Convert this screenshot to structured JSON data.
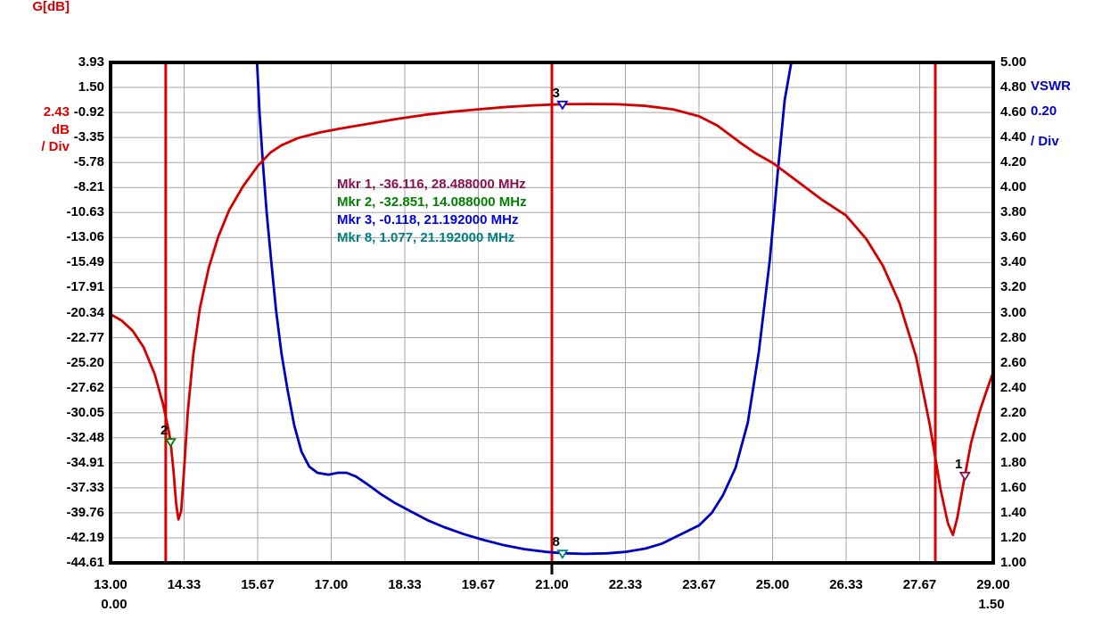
{
  "left_axis": {
    "name": "G[dB]",
    "per_div": "2.43",
    "per_div_unit": "dB",
    "per_div_suffix": "/ Div",
    "color": "#dd0000",
    "range": [
      3.93,
      -44.61
    ],
    "ticks": [
      "3.93",
      "1.50",
      "-0.92",
      "-3.35",
      "-5.78",
      "-8.21",
      "-10.63",
      "-13.06",
      "-15.49",
      "-17.91",
      "-20.34",
      "-22.77",
      "-25.20",
      "-27.62",
      "-30.05",
      "-32.48",
      "-34.91",
      "-37.33",
      "-39.76",
      "-42.19",
      "-44.61"
    ]
  },
  "right_axis": {
    "name": "VSWR",
    "per_div": "0.20",
    "per_div_suffix": "/ Div",
    "color": "#0000cc",
    "range": [
      5.0,
      1.0
    ],
    "ticks": [
      "5.00",
      "4.80",
      "4.60",
      "4.40",
      "4.20",
      "4.00",
      "3.80",
      "3.60",
      "3.40",
      "3.20",
      "3.00",
      "2.80",
      "2.60",
      "2.40",
      "2.20",
      "2.00",
      "1.80",
      "1.60",
      "1.40",
      "1.20",
      "1.00"
    ]
  },
  "x_axis": {
    "range_mhz": [
      13.0,
      29.0
    ],
    "ticks": [
      "13.00",
      "14.33",
      "15.67",
      "17.00",
      "18.33",
      "19.67",
      "21.00",
      "22.33",
      "23.67",
      "25.00",
      "26.33",
      "27.67",
      "29.00"
    ],
    "sub_label_left": "0.00",
    "sub_label_right": "1.50"
  },
  "marker_readout": {
    "lines": [
      {
        "text": "Mkr 1, -36.116, 28.488000 MHz",
        "color": "#8b1050"
      },
      {
        "text": "Mkr 2, -32.851, 14.088000 MHz",
        "color": "#008000"
      },
      {
        "text": "Mkr 3, -0.118, 21.192000 MHz",
        "color": "#0000e6"
      },
      {
        "text": "Mkr 8, 1.077, 21.192000 MHz",
        "color": "#008080"
      }
    ]
  },
  "chart_data": {
    "type": "line",
    "title": "",
    "x_range": [
      13.0,
      29.0
    ],
    "left_axis_range": [
      -44.61,
      3.93
    ],
    "right_axis_range": [
      1.0,
      5.0
    ],
    "grid": true,
    "frame_color": "#000000",
    "grid_color": "#a6a6a6",
    "vertical_reference_lines": {
      "color": "#dd0000",
      "frequencies_mhz": [
        14.0,
        21.0,
        27.95
      ]
    },
    "bottom_tick_mhz": 21.0,
    "series": [
      {
        "name": "Gain",
        "unit": "dB",
        "axis": "left",
        "color": "#d40000",
        "points": [
          [
            13.0,
            -20.5
          ],
          [
            13.2,
            -21.1
          ],
          [
            13.4,
            -22.1
          ],
          [
            13.6,
            -23.7
          ],
          [
            13.8,
            -26.3
          ],
          [
            13.95,
            -29.2
          ],
          [
            14.05,
            -31.7
          ],
          [
            14.088,
            -32.851
          ],
          [
            14.14,
            -35.6
          ],
          [
            14.19,
            -38.9
          ],
          [
            14.23,
            -40.4
          ],
          [
            14.28,
            -39.6
          ],
          [
            14.33,
            -35.8
          ],
          [
            14.4,
            -30.0
          ],
          [
            14.5,
            -24.4
          ],
          [
            14.62,
            -19.9
          ],
          [
            14.78,
            -16.0
          ],
          [
            14.95,
            -13.0
          ],
          [
            15.15,
            -10.4
          ],
          [
            15.4,
            -8.1
          ],
          [
            15.67,
            -6.1
          ],
          [
            15.9,
            -4.8
          ],
          [
            16.1,
            -4.1
          ],
          [
            16.4,
            -3.4
          ],
          [
            16.8,
            -2.85
          ],
          [
            17.2,
            -2.45
          ],
          [
            17.7,
            -2.0
          ],
          [
            18.2,
            -1.55
          ],
          [
            18.7,
            -1.15
          ],
          [
            19.2,
            -0.85
          ],
          [
            19.7,
            -0.6
          ],
          [
            20.2,
            -0.38
          ],
          [
            20.7,
            -0.22
          ],
          [
            21.192,
            -0.118
          ],
          [
            21.7,
            -0.1
          ],
          [
            22.2,
            -0.13
          ],
          [
            22.7,
            -0.28
          ],
          [
            23.2,
            -0.62
          ],
          [
            23.67,
            -1.3
          ],
          [
            24.0,
            -2.2
          ],
          [
            24.4,
            -3.8
          ],
          [
            24.7,
            -4.9
          ],
          [
            25.0,
            -5.8
          ],
          [
            25.4,
            -7.4
          ],
          [
            25.9,
            -9.4
          ],
          [
            26.33,
            -10.9
          ],
          [
            26.7,
            -13.2
          ],
          [
            27.0,
            -15.8
          ],
          [
            27.3,
            -19.4
          ],
          [
            27.6,
            -24.6
          ],
          [
            27.85,
            -31.2
          ],
          [
            28.05,
            -37.6
          ],
          [
            28.18,
            -40.8
          ],
          [
            28.27,
            -41.9
          ],
          [
            28.35,
            -40.2
          ],
          [
            28.42,
            -38.1
          ],
          [
            28.488,
            -36.116
          ],
          [
            28.6,
            -32.9
          ],
          [
            28.75,
            -30.0
          ],
          [
            28.88,
            -27.9
          ],
          [
            29.0,
            -26.1
          ]
        ]
      },
      {
        "name": "VSWR",
        "unit": "",
        "axis": "right",
        "color": "#0000c0",
        "points": [
          [
            15.655,
            5.0
          ],
          [
            15.7,
            4.6
          ],
          [
            15.76,
            4.2
          ],
          [
            15.83,
            3.8
          ],
          [
            15.91,
            3.42
          ],
          [
            16.0,
            3.02
          ],
          [
            16.1,
            2.67
          ],
          [
            16.21,
            2.38
          ],
          [
            16.33,
            2.1
          ],
          [
            16.46,
            1.89
          ],
          [
            16.6,
            1.77
          ],
          [
            16.75,
            1.72
          ],
          [
            16.95,
            1.705
          ],
          [
            17.12,
            1.72
          ],
          [
            17.28,
            1.72
          ],
          [
            17.45,
            1.69
          ],
          [
            17.65,
            1.63
          ],
          [
            17.9,
            1.55
          ],
          [
            18.15,
            1.48
          ],
          [
            18.45,
            1.41
          ],
          [
            18.75,
            1.34
          ],
          [
            19.05,
            1.285
          ],
          [
            19.4,
            1.23
          ],
          [
            19.75,
            1.185
          ],
          [
            20.1,
            1.145
          ],
          [
            20.5,
            1.11
          ],
          [
            20.9,
            1.088
          ],
          [
            21.192,
            1.077
          ],
          [
            21.6,
            1.072
          ],
          [
            22.0,
            1.076
          ],
          [
            22.33,
            1.088
          ],
          [
            22.7,
            1.115
          ],
          [
            23.0,
            1.155
          ],
          [
            23.3,
            1.22
          ],
          [
            23.67,
            1.3
          ],
          [
            23.9,
            1.4
          ],
          [
            24.1,
            1.54
          ],
          [
            24.33,
            1.76
          ],
          [
            24.55,
            2.12
          ],
          [
            24.75,
            2.68
          ],
          [
            24.95,
            3.42
          ],
          [
            25.1,
            4.15
          ],
          [
            25.22,
            4.7
          ],
          [
            25.34,
            5.0
          ]
        ]
      }
    ],
    "markers": [
      {
        "id": "1",
        "series": "Gain",
        "axis": "left",
        "freq_mhz": 28.488,
        "value": -36.116,
        "color": "#8b1050"
      },
      {
        "id": "2",
        "series": "Gain",
        "axis": "left",
        "freq_mhz": 14.088,
        "value": -32.851,
        "color": "#008000"
      },
      {
        "id": "3",
        "series": "Gain",
        "axis": "left",
        "freq_mhz": 21.192,
        "value": -0.118,
        "color": "#0000e6"
      },
      {
        "id": "8",
        "series": "VSWR",
        "axis": "right",
        "freq_mhz": 21.192,
        "value": 1.077,
        "color": "#008080"
      }
    ]
  }
}
